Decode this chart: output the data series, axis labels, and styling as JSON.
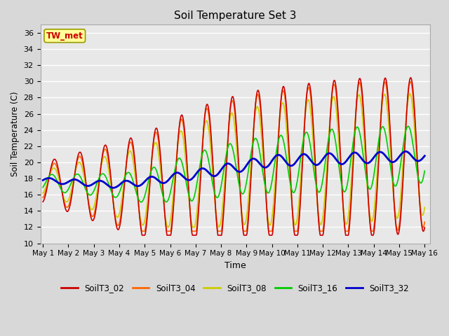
{
  "title": "Soil Temperature Set 3",
  "xlabel": "Time",
  "ylabel": "Soil Temperature (C)",
  "ylim": [
    10,
    37
  ],
  "yticks": [
    10,
    12,
    14,
    16,
    18,
    20,
    22,
    24,
    26,
    28,
    30,
    32,
    34,
    36
  ],
  "xlim": [
    -0.1,
    15.2
  ],
  "xtick_labels": [
    "May 1",
    "May 2",
    "May 3",
    "May 4",
    "May 5",
    "May 6",
    "May 7",
    "May 8",
    "May 9",
    "May 10",
    "May 11",
    "May 12",
    "May 13",
    "May 14",
    "May 15",
    "May 16"
  ],
  "xtick_positions": [
    0,
    1,
    2,
    3,
    4,
    5,
    6,
    7,
    8,
    9,
    10,
    11,
    12,
    13,
    14,
    15
  ],
  "series_colors": {
    "SoilT3_02": "#cc0000",
    "SoilT3_04": "#ff6600",
    "SoilT3_08": "#cccc00",
    "SoilT3_16": "#00cc00",
    "SoilT3_32": "#0000cc"
  },
  "annotation_text": "TW_met",
  "annotation_box_color": "#ffff99",
  "annotation_box_edgecolor": "#999900",
  "annotation_text_color": "#cc0000",
  "fig_bg_color": "#d8d8d8",
  "plot_bg_color": "#e8e8e8",
  "grid_color": "#ffffff",
  "legend_labels": [
    "SoilT3_02",
    "SoilT3_04",
    "SoilT3_08",
    "SoilT3_16",
    "SoilT3_32"
  ],
  "legend_colors": [
    "#cc0000",
    "#ff6600",
    "#cccc00",
    "#00cc00",
    "#0000cc"
  ]
}
